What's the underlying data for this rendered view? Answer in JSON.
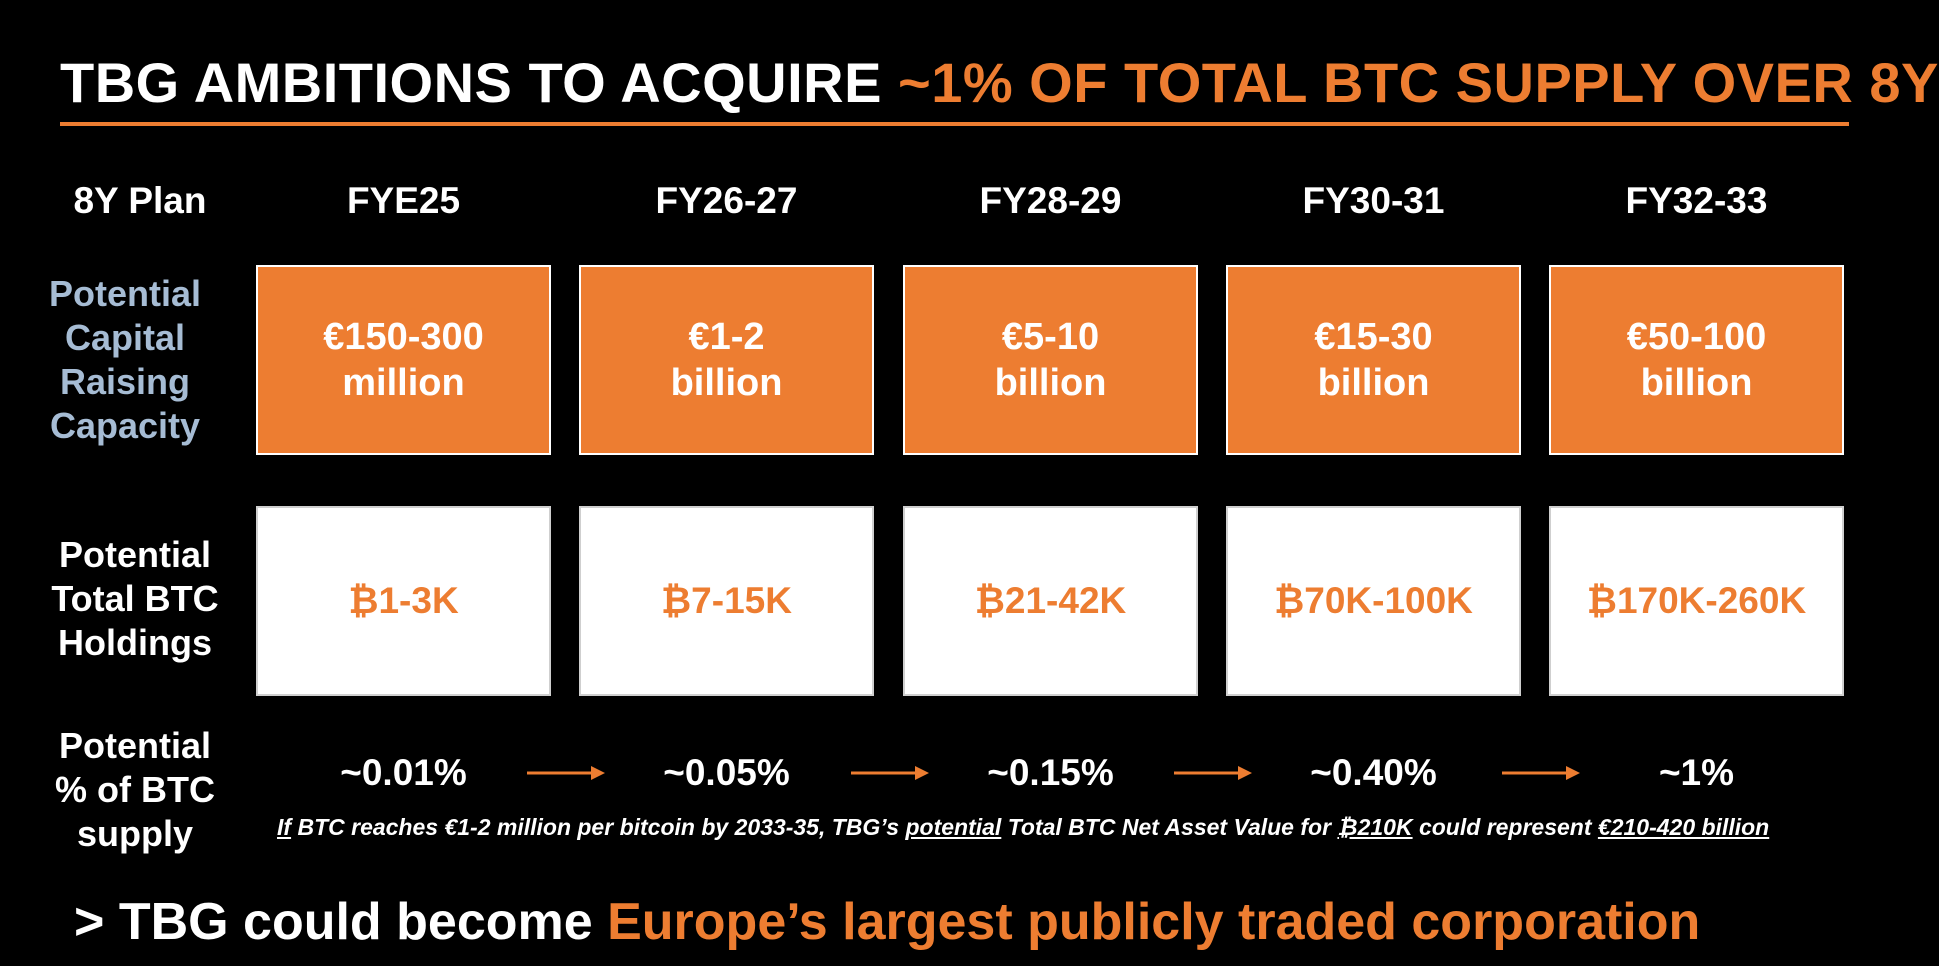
{
  "title": {
    "white": "TBG AMBITIONS TO ACQUIRE ",
    "orange": "~1% OF TOTAL BTC SUPPLY OVER 8Y"
  },
  "header": {
    "plan_label": "8Y Plan",
    "columns": [
      "FYE25",
      "FY26-27",
      "FY28-29",
      "FY30-31",
      "FY32-33"
    ]
  },
  "capital_row": {
    "label_lines": [
      "Potential",
      "Capital",
      "Raising",
      "Capacity"
    ],
    "boxes": [
      {
        "line1": "€150-300",
        "line2": "million"
      },
      {
        "line1": "€1-2",
        "line2": "billion"
      },
      {
        "line1": "€5-10",
        "line2": "billion"
      },
      {
        "line1": "€15-30",
        "line2": "billion"
      },
      {
        "line1": "€50-100",
        "line2": "billion"
      }
    ]
  },
  "holdings_row": {
    "label_lines": [
      "Potential",
      "Total BTC",
      "Holdings"
    ],
    "values": [
      "₿1-3K",
      "₿7-15K",
      "₿21-42K",
      "₿70K-100K",
      "₿170K-260K"
    ]
  },
  "supply_row": {
    "label_lines": [
      "Potential",
      "% of BTC",
      "supply"
    ],
    "values": [
      "~0.01%",
      "~0.05%",
      "~0.15%",
      "~0.40%",
      "~1%"
    ]
  },
  "footnote": {
    "if": "If",
    "part1": " BTC reaches €1-2 million per bitcoin by 2033-35, TBG’s ",
    "potential": "potential",
    "part2": " Total BTC Net Asset Value for ",
    "btc_amount": "₿210K",
    "part3": " could represent ",
    "value": "€210-420 billion"
  },
  "conclusion": {
    "white": "> TBG could become ",
    "orange": "Europe’s largest publicly traded corporation"
  },
  "colors": {
    "accent": "#ED7D31",
    "label_blue": "#A6BCD4",
    "background": "#000000"
  }
}
